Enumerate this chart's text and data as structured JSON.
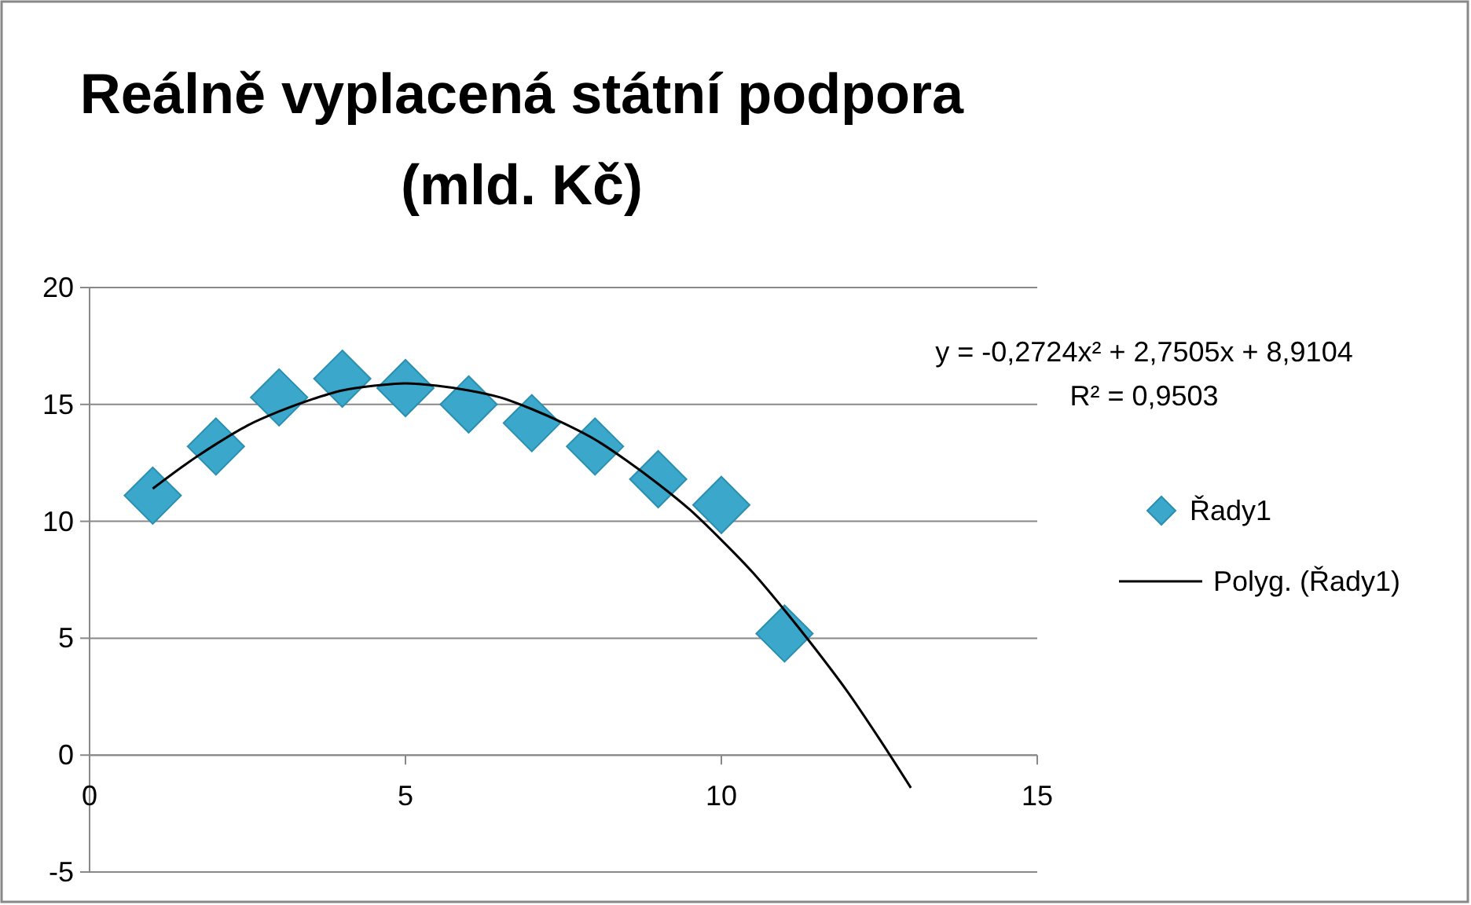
{
  "chart_data": {
    "type": "scatter",
    "title": "Reálně vyplacená státní podpora (mld. Kč)",
    "x": [
      1,
      2,
      3,
      4,
      5,
      6,
      7,
      8,
      9,
      10,
      11
    ],
    "series": [
      {
        "name": "Řady1",
        "color": "#3aa7cb",
        "marker": "diamond",
        "values": [
          11.1,
          13.2,
          15.3,
          16.1,
          15.7,
          15.0,
          14.2,
          13.2,
          11.8,
          10.7,
          5.2
        ]
      },
      {
        "name": "Polyg. (Řady1)",
        "type": "line",
        "color": "#000000",
        "marker": "none",
        "line_style": "solid",
        "x": [
          1,
          1.5,
          2,
          2.5,
          3,
          3.5,
          4,
          4.5,
          5,
          5.5,
          6,
          6.5,
          7,
          7.5,
          8,
          8.5,
          9,
          9.5,
          10,
          10.5,
          11,
          11.5,
          12,
          12.5,
          13
        ],
        "values": [
          11.4,
          12.4,
          13.3,
          14.1,
          14.7,
          15.2,
          15.6,
          15.8,
          15.9,
          15.8,
          15.6,
          15.3,
          14.8,
          14.2,
          13.5,
          12.6,
          11.6,
          10.5,
          9.2,
          7.8,
          6.2,
          4.5,
          2.7,
          0.7,
          -1.4
        ]
      }
    ],
    "annotations": [
      "y = -0,2724x² + 2,7505x + 8,9104",
      "R² = 0,9503"
    ],
    "xlim": [
      0,
      15
    ],
    "xticks": [
      0,
      5,
      10,
      15
    ],
    "ylim": [
      -5,
      20
    ],
    "yticks": [
      -5,
      0,
      5,
      10,
      15,
      20
    ],
    "grid": "y",
    "legend": "right"
  }
}
